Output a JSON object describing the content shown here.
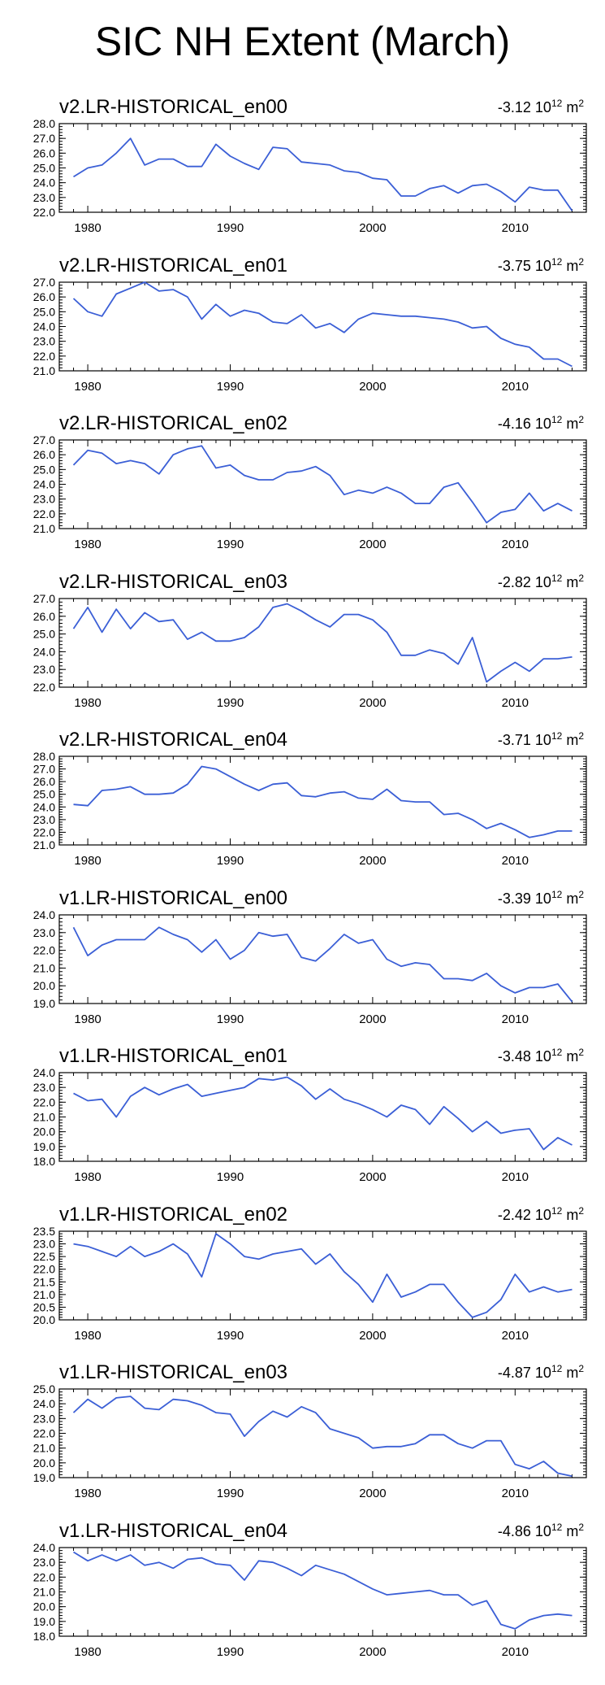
{
  "title": "SIC NH Extent (March)",
  "colors": {
    "line": "#3b5fd6",
    "axis": "#000000"
  },
  "chart_data": [
    {
      "type": "line",
      "title": "v2.LR-HISTORICAL_en00",
      "trend": {
        "value": "-3.12",
        "exponent": "12",
        "unit_base": "10",
        "unit": "m",
        "unit_exp": "2"
      },
      "x": [
        1979,
        1980,
        1981,
        1982,
        1983,
        1984,
        1985,
        1986,
        1987,
        1988,
        1989,
        1990,
        1991,
        1992,
        1993,
        1994,
        1995,
        1996,
        1997,
        1998,
        1999,
        2000,
        2001,
        2002,
        2003,
        2004,
        2005,
        2006,
        2007,
        2008,
        2009,
        2010,
        2011,
        2012,
        2013,
        2014
      ],
      "values": [
        24.4,
        25.0,
        25.2,
        26.0,
        27.0,
        25.2,
        25.6,
        25.6,
        25.1,
        25.1,
        26.6,
        25.8,
        25.3,
        24.9,
        26.4,
        26.3,
        25.4,
        25.3,
        25.2,
        24.8,
        24.7,
        24.3,
        24.2,
        23.1,
        23.1,
        23.6,
        23.8,
        23.3,
        23.8,
        23.9,
        23.4,
        22.7,
        23.7,
        23.5,
        23.5,
        22.1
      ],
      "xlim": [
        1978,
        2015
      ],
      "ylim": [
        22.0,
        28.0
      ],
      "yticks": [
        "22.0",
        "23.0",
        "24.0",
        "25.0",
        "26.0",
        "27.0",
        "28.0"
      ],
      "xticks": [
        "1980",
        "1990",
        "2000",
        "2010"
      ]
    },
    {
      "type": "line",
      "title": "v2.LR-HISTORICAL_en01",
      "trend": {
        "value": "-3.75",
        "exponent": "12",
        "unit_base": "10",
        "unit": "m",
        "unit_exp": "2"
      },
      "x": [
        1979,
        1980,
        1981,
        1982,
        1983,
        1984,
        1985,
        1986,
        1987,
        1988,
        1989,
        1990,
        1991,
        1992,
        1993,
        1994,
        1995,
        1996,
        1997,
        1998,
        1999,
        2000,
        2001,
        2002,
        2003,
        2004,
        2005,
        2006,
        2007,
        2008,
        2009,
        2010,
        2011,
        2012,
        2013,
        2014
      ],
      "values": [
        25.9,
        25.0,
        24.7,
        26.2,
        26.6,
        27.0,
        26.4,
        26.5,
        26.0,
        24.5,
        25.5,
        24.7,
        25.1,
        24.9,
        24.3,
        24.2,
        24.8,
        23.9,
        24.2,
        23.6,
        24.5,
        24.9,
        24.8,
        24.7,
        24.7,
        24.6,
        24.5,
        24.3,
        23.9,
        24.0,
        23.2,
        22.8,
        22.6,
        21.8,
        21.8,
        21.3
      ],
      "xlim": [
        1978,
        2015
      ],
      "ylim": [
        21.0,
        27.0
      ],
      "yticks": [
        "21.0",
        "22.0",
        "23.0",
        "24.0",
        "25.0",
        "26.0",
        "27.0"
      ],
      "xticks": [
        "1980",
        "1990",
        "2000",
        "2010"
      ]
    },
    {
      "type": "line",
      "title": "v2.LR-HISTORICAL_en02",
      "trend": {
        "value": "-4.16",
        "exponent": "12",
        "unit_base": "10",
        "unit": "m",
        "unit_exp": "2"
      },
      "x": [
        1979,
        1980,
        1981,
        1982,
        1983,
        1984,
        1985,
        1986,
        1987,
        1988,
        1989,
        1990,
        1991,
        1992,
        1993,
        1994,
        1995,
        1996,
        1997,
        1998,
        1999,
        2000,
        2001,
        2002,
        2003,
        2004,
        2005,
        2006,
        2007,
        2008,
        2009,
        2010,
        2011,
        2012,
        2013,
        2014
      ],
      "values": [
        25.3,
        26.3,
        26.1,
        25.4,
        25.6,
        25.4,
        24.7,
        26.0,
        26.4,
        26.6,
        25.1,
        25.3,
        24.6,
        24.3,
        24.3,
        24.8,
        24.9,
        25.2,
        24.6,
        23.3,
        23.6,
        23.4,
        23.8,
        23.4,
        22.7,
        22.7,
        23.8,
        24.1,
        22.8,
        21.4,
        22.1,
        22.3,
        23.4,
        22.2,
        22.7,
        22.2
      ],
      "xlim": [
        1978,
        2015
      ],
      "ylim": [
        21.0,
        27.0
      ],
      "yticks": [
        "21.0",
        "22.0",
        "23.0",
        "24.0",
        "25.0",
        "26.0",
        "27.0"
      ],
      "xticks": [
        "1980",
        "1990",
        "2000",
        "2010"
      ]
    },
    {
      "type": "line",
      "title": "v2.LR-HISTORICAL_en03",
      "trend": {
        "value": "-2.82",
        "exponent": "12",
        "unit_base": "10",
        "unit": "m",
        "unit_exp": "2"
      },
      "x": [
        1979,
        1980,
        1981,
        1982,
        1983,
        1984,
        1985,
        1986,
        1987,
        1988,
        1989,
        1990,
        1991,
        1992,
        1993,
        1994,
        1995,
        1996,
        1997,
        1998,
        1999,
        2000,
        2001,
        2002,
        2003,
        2004,
        2005,
        2006,
        2007,
        2008,
        2009,
        2010,
        2011,
        2012,
        2013,
        2014
      ],
      "values": [
        25.3,
        26.5,
        25.1,
        26.4,
        25.3,
        26.2,
        25.7,
        25.8,
        24.7,
        25.1,
        24.6,
        24.6,
        24.8,
        25.4,
        26.5,
        26.7,
        26.3,
        25.8,
        25.4,
        26.1,
        26.1,
        25.8,
        25.1,
        23.8,
        23.8,
        24.1,
        23.9,
        23.3,
        24.8,
        22.3,
        22.9,
        23.4,
        22.9,
        23.6,
        23.6,
        23.7
      ],
      "xlim": [
        1978,
        2015
      ],
      "ylim": [
        22.0,
        27.0
      ],
      "yticks": [
        "22.0",
        "23.0",
        "24.0",
        "25.0",
        "26.0",
        "27.0"
      ],
      "xticks": [
        "1980",
        "1990",
        "2000",
        "2010"
      ]
    },
    {
      "type": "line",
      "title": "v2.LR-HISTORICAL_en04",
      "trend": {
        "value": "-3.71",
        "exponent": "12",
        "unit_base": "10",
        "unit": "m",
        "unit_exp": "2"
      },
      "x": [
        1979,
        1980,
        1981,
        1982,
        1983,
        1984,
        1985,
        1986,
        1987,
        1988,
        1989,
        1990,
        1991,
        1992,
        1993,
        1994,
        1995,
        1996,
        1997,
        1998,
        1999,
        2000,
        2001,
        2002,
        2003,
        2004,
        2005,
        2006,
        2007,
        2008,
        2009,
        2010,
        2011,
        2012,
        2013,
        2014
      ],
      "values": [
        24.2,
        24.1,
        25.3,
        25.4,
        25.6,
        25.0,
        25.0,
        25.1,
        25.8,
        27.2,
        27.0,
        26.4,
        25.8,
        25.3,
        25.8,
        25.9,
        24.9,
        24.8,
        25.1,
        25.2,
        24.7,
        24.6,
        25.4,
        24.5,
        24.4,
        24.4,
        23.4,
        23.5,
        23.0,
        22.3,
        22.7,
        22.2,
        21.6,
        21.8,
        22.1,
        22.1
      ],
      "xlim": [
        1978,
        2015
      ],
      "ylim": [
        21.0,
        28.0
      ],
      "yticks": [
        "21.0",
        "22.0",
        "23.0",
        "24.0",
        "25.0",
        "26.0",
        "27.0",
        "28.0"
      ],
      "xticks": [
        "1980",
        "1990",
        "2000",
        "2010"
      ]
    },
    {
      "type": "line",
      "title": "v1.LR-HISTORICAL_en00",
      "trend": {
        "value": "-3.39",
        "exponent": "12",
        "unit_base": "10",
        "unit": "m",
        "unit_exp": "2"
      },
      "x": [
        1979,
        1980,
        1981,
        1982,
        1983,
        1984,
        1985,
        1986,
        1987,
        1988,
        1989,
        1990,
        1991,
        1992,
        1993,
        1994,
        1995,
        1996,
        1997,
        1998,
        1999,
        2000,
        2001,
        2002,
        2003,
        2004,
        2005,
        2006,
        2007,
        2008,
        2009,
        2010,
        2011,
        2012,
        2013,
        2014
      ],
      "values": [
        23.3,
        21.7,
        22.3,
        22.6,
        22.6,
        22.6,
        23.3,
        22.9,
        22.6,
        21.9,
        22.6,
        21.5,
        22.0,
        23.0,
        22.8,
        22.9,
        21.6,
        21.4,
        22.1,
        22.9,
        22.4,
        22.6,
        21.5,
        21.1,
        21.3,
        21.2,
        20.4,
        20.4,
        20.3,
        20.7,
        20.0,
        19.6,
        19.9,
        19.9,
        20.1,
        19.1
      ],
      "xlim": [
        1978,
        2015
      ],
      "ylim": [
        19.0,
        24.0
      ],
      "yticks": [
        "19.0",
        "20.0",
        "21.0",
        "22.0",
        "23.0",
        "24.0"
      ],
      "xticks": [
        "1980",
        "1990",
        "2000",
        "2010"
      ]
    },
    {
      "type": "line",
      "title": "v1.LR-HISTORICAL_en01",
      "trend": {
        "value": "-3.48",
        "exponent": "12",
        "unit_base": "10",
        "unit": "m",
        "unit_exp": "2"
      },
      "x": [
        1979,
        1980,
        1981,
        1982,
        1983,
        1984,
        1985,
        1986,
        1987,
        1988,
        1989,
        1990,
        1991,
        1992,
        1993,
        1994,
        1995,
        1996,
        1997,
        1998,
        1999,
        2000,
        2001,
        2002,
        2003,
        2004,
        2005,
        2006,
        2007,
        2008,
        2009,
        2010,
        2011,
        2012,
        2013,
        2014
      ],
      "values": [
        22.6,
        22.1,
        22.2,
        21.0,
        22.4,
        23.0,
        22.5,
        22.9,
        23.2,
        22.4,
        22.6,
        22.8,
        23.0,
        23.6,
        23.5,
        23.7,
        23.1,
        22.2,
        22.9,
        22.2,
        21.9,
        21.5,
        21.0,
        21.8,
        21.5,
        20.5,
        21.7,
        20.9,
        20.0,
        20.7,
        19.9,
        20.1,
        20.2,
        18.8,
        19.6,
        19.1
      ],
      "xlim": [
        1978,
        2015
      ],
      "ylim": [
        18.0,
        24.0
      ],
      "yticks": [
        "18.0",
        "19.0",
        "20.0",
        "21.0",
        "22.0",
        "23.0",
        "24.0"
      ],
      "xticks": [
        "1980",
        "1990",
        "2000",
        "2010"
      ]
    },
    {
      "type": "line",
      "title": "v1.LR-HISTORICAL_en02",
      "trend": {
        "value": "-2.42",
        "exponent": "12",
        "unit_base": "10",
        "unit": "m",
        "unit_exp": "2"
      },
      "x": [
        1979,
        1980,
        1981,
        1982,
        1983,
        1984,
        1985,
        1986,
        1987,
        1988,
        1989,
        1990,
        1991,
        1992,
        1993,
        1994,
        1995,
        1996,
        1997,
        1998,
        1999,
        2000,
        2001,
        2002,
        2003,
        2004,
        2005,
        2006,
        2007,
        2008,
        2009,
        2010,
        2011,
        2012,
        2013,
        2014
      ],
      "values": [
        23.0,
        22.9,
        22.7,
        22.5,
        22.9,
        22.5,
        22.7,
        23.0,
        22.6,
        21.7,
        23.4,
        23.0,
        22.5,
        22.4,
        22.6,
        22.7,
        22.8,
        22.2,
        22.6,
        21.9,
        21.4,
        20.7,
        21.8,
        20.9,
        21.1,
        21.4,
        21.4,
        20.7,
        20.1,
        20.3,
        20.8,
        21.8,
        21.1,
        21.3,
        21.1,
        21.2
      ],
      "xlim": [
        1978,
        2015
      ],
      "ylim": [
        20.0,
        23.5
      ],
      "yticks": [
        "20.0",
        "20.5",
        "21.0",
        "21.5",
        "22.0",
        "22.5",
        "23.0",
        "23.5"
      ],
      "xticks": [
        "1980",
        "1990",
        "2000",
        "2010"
      ]
    },
    {
      "type": "line",
      "title": "v1.LR-HISTORICAL_en03",
      "trend": {
        "value": "-4.87",
        "exponent": "12",
        "unit_base": "10",
        "unit": "m",
        "unit_exp": "2"
      },
      "x": [
        1979,
        1980,
        1981,
        1982,
        1983,
        1984,
        1985,
        1986,
        1987,
        1988,
        1989,
        1990,
        1991,
        1992,
        1993,
        1994,
        1995,
        1996,
        1997,
        1998,
        1999,
        2000,
        2001,
        2002,
        2003,
        2004,
        2005,
        2006,
        2007,
        2008,
        2009,
        2010,
        2011,
        2012,
        2013,
        2014
      ],
      "values": [
        23.4,
        24.3,
        23.7,
        24.4,
        24.5,
        23.7,
        23.6,
        24.3,
        24.2,
        23.9,
        23.4,
        23.3,
        21.8,
        22.8,
        23.5,
        23.1,
        23.8,
        23.4,
        22.3,
        22.0,
        21.7,
        21.0,
        21.1,
        21.1,
        21.3,
        21.9,
        21.9,
        21.3,
        21.0,
        21.5,
        21.5,
        19.9,
        19.6,
        20.1,
        19.3,
        19.1
      ],
      "xlim": [
        1978,
        2015
      ],
      "ylim": [
        19.0,
        25.0
      ],
      "yticks": [
        "19.0",
        "20.0",
        "21.0",
        "22.0",
        "23.0",
        "24.0",
        "25.0"
      ],
      "xticks": [
        "1980",
        "1990",
        "2000",
        "2010"
      ]
    },
    {
      "type": "line",
      "title": "v1.LR-HISTORICAL_en04",
      "trend": {
        "value": "-4.86",
        "exponent": "12",
        "unit_base": "10",
        "unit": "m",
        "unit_exp": "2"
      },
      "x": [
        1979,
        1980,
        1981,
        1982,
        1983,
        1984,
        1985,
        1986,
        1987,
        1988,
        1989,
        1990,
        1991,
        1992,
        1993,
        1994,
        1995,
        1996,
        1997,
        1998,
        1999,
        2000,
        2001,
        2002,
        2003,
        2004,
        2005,
        2006,
        2007,
        2008,
        2009,
        2010,
        2011,
        2012,
        2013,
        2014
      ],
      "values": [
        23.7,
        23.1,
        23.5,
        23.1,
        23.5,
        22.8,
        23.0,
        22.6,
        23.2,
        23.3,
        22.9,
        22.8,
        21.8,
        23.1,
        23.0,
        22.6,
        22.1,
        22.8,
        22.5,
        22.2,
        21.7,
        21.2,
        20.8,
        20.9,
        21.0,
        21.1,
        20.8,
        20.8,
        20.1,
        20.4,
        18.8,
        18.5,
        19.1,
        19.4,
        19.5,
        19.4
      ],
      "xlim": [
        1978,
        2015
      ],
      "ylim": [
        18.0,
        24.0
      ],
      "yticks": [
        "18.0",
        "19.0",
        "20.0",
        "21.0",
        "22.0",
        "23.0",
        "24.0"
      ],
      "xticks": [
        "1980",
        "1990",
        "2000",
        "2010"
      ]
    }
  ]
}
